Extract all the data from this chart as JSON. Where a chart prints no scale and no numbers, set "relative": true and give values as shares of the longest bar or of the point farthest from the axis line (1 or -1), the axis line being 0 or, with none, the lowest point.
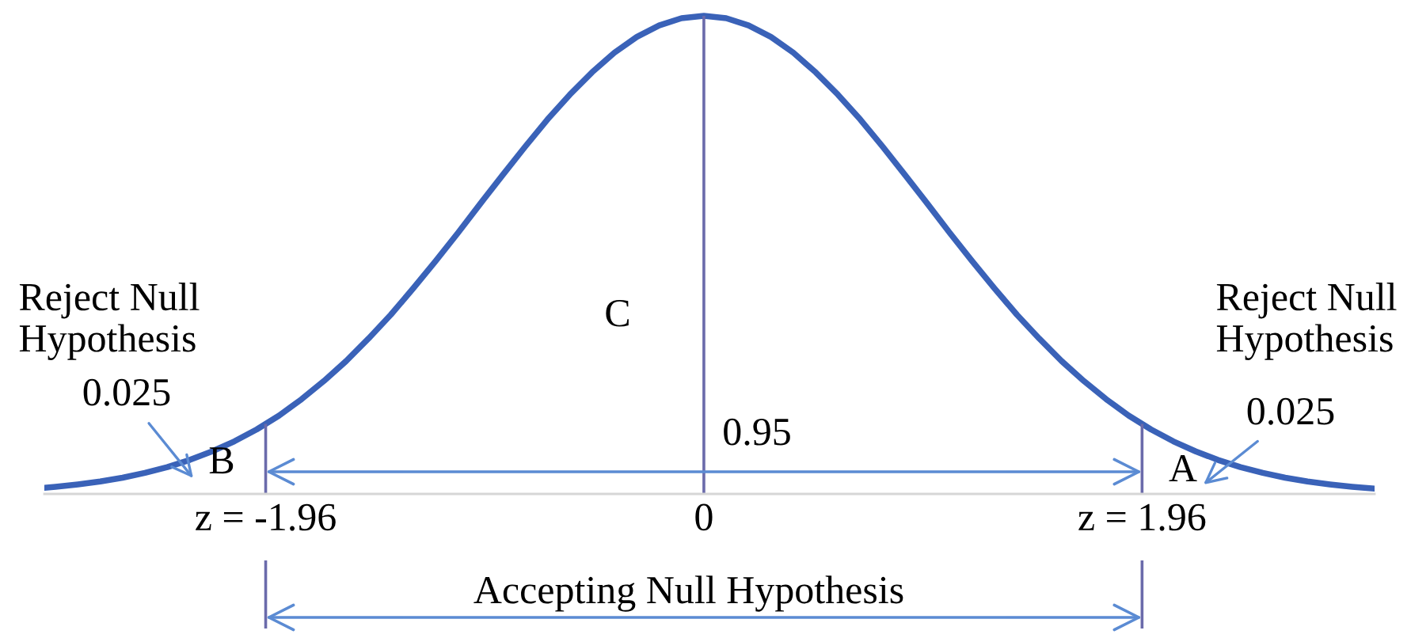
{
  "chart_data": {
    "type": "line",
    "relative": true,
    "x": [
      -2.95,
      -2.9,
      -2.8,
      -2.7,
      -2.6,
      -2.5,
      -2.4,
      -2.3,
      -2.2,
      -2.1,
      -2.0,
      -1.9,
      -1.8,
      -1.7,
      -1.6,
      -1.5,
      -1.4,
      -1.3,
      -1.2,
      -1.1,
      -1.0,
      -0.9,
      -0.8,
      -0.7,
      -0.6,
      -0.5,
      -0.4,
      -0.3,
      -0.2,
      -0.1,
      0,
      0.1,
      0.2,
      0.3,
      0.4,
      0.5,
      0.6,
      0.7,
      0.8,
      0.9,
      1.0,
      1.1,
      1.2,
      1.3,
      1.4,
      1.5,
      1.6,
      1.7,
      1.8,
      1.9,
      2.0,
      2.1,
      2.2,
      2.3,
      2.4,
      2.5,
      2.6,
      2.7,
      2.8,
      2.9,
      3.0
    ],
    "series": [
      {
        "color": "#3a62b8",
        "values": [
          0.013,
          0.015,
          0.02,
          0.026,
          0.034,
          0.044,
          0.056,
          0.071,
          0.089,
          0.11,
          0.135,
          0.164,
          0.198,
          0.236,
          0.278,
          0.325,
          0.375,
          0.43,
          0.487,
          0.546,
          0.607,
          0.667,
          0.726,
          0.783,
          0.835,
          0.882,
          0.923,
          0.956,
          0.98,
          0.995,
          1.0,
          0.995,
          0.98,
          0.956,
          0.923,
          0.882,
          0.835,
          0.783,
          0.726,
          0.667,
          0.607,
          0.546,
          0.487,
          0.43,
          0.375,
          0.325,
          0.278,
          0.236,
          0.198,
          0.164,
          0.135,
          0.11,
          0.089,
          0.071,
          0.056,
          0.044,
          0.034,
          0.026,
          0.02,
          0.015,
          0.011
        ]
      }
    ],
    "xlim": [
      -2.95,
      3.0
    ],
    "xticks": [
      {
        "value": -1.96,
        "label": "z = -1.96"
      },
      0,
      {
        "value": 1.96,
        "label": "z = 1.96"
      }
    ],
    "ref_lines": [
      {
        "axis": "x",
        "value": -1.96,
        "color": "#6b6bab"
      },
      {
        "axis": "x",
        "value": 0,
        "color": "#6b6bab"
      },
      {
        "axis": "x",
        "value": 1.96,
        "color": "#6b6bab"
      }
    ],
    "annotations": [
      "Reject Null\nHypothesis",
      "0.025",
      "B",
      "C",
      "0.95",
      "A",
      "Reject Null\nHypothesis",
      "0.025",
      "Accepting Null Hypothesis"
    ],
    "line_style": "solid"
  }
}
